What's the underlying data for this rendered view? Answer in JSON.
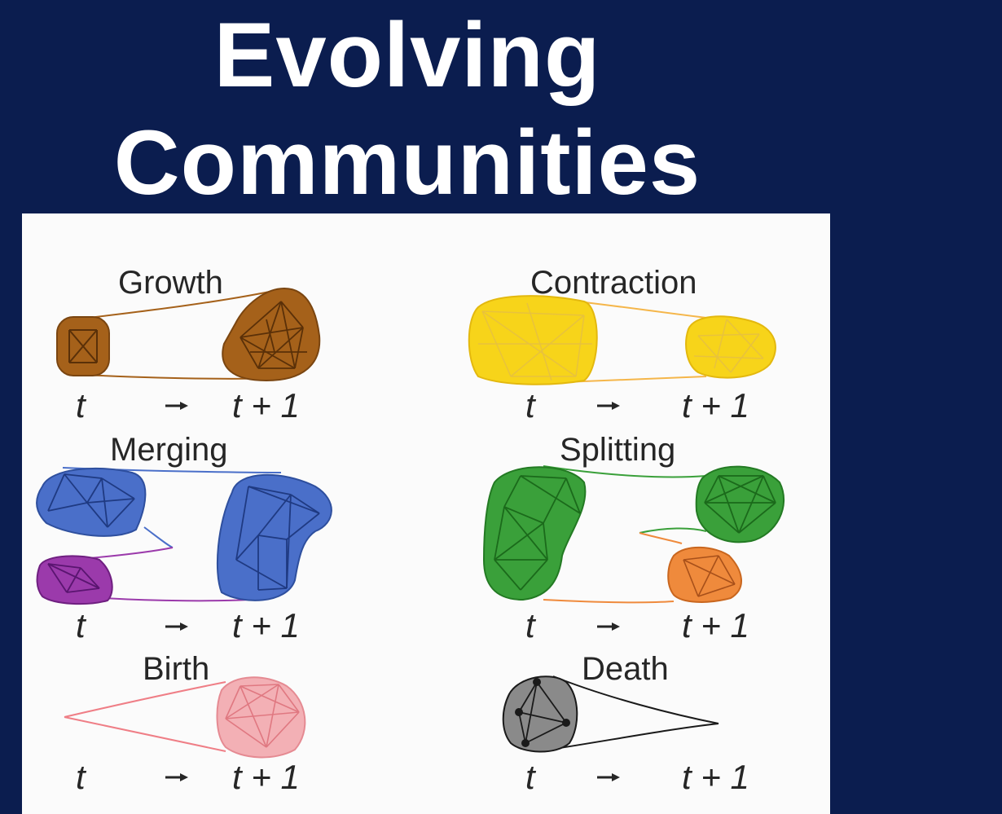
{
  "slide": {
    "title_line1": "Evolving",
    "title_line2": "Communities"
  },
  "panels": [
    {
      "id": "growth",
      "label": "Growth",
      "color": "#a5611a",
      "from": "t",
      "to": "t + 1"
    },
    {
      "id": "contraction",
      "label": "Contraction",
      "color": "#f7d41a",
      "from": "t",
      "to": "t + 1"
    },
    {
      "id": "merging",
      "label": "Merging",
      "color": "#4a6fc9",
      "color2": "#9b3aab",
      "from": "t",
      "to": "t + 1"
    },
    {
      "id": "splitting",
      "label": "Splitting",
      "color": "#3aa03a",
      "color2": "#ef8a3c",
      "from": "t",
      "to": "t + 1"
    },
    {
      "id": "birth",
      "label": "Birth",
      "color": "#ee9aa0",
      "from": "t",
      "to": "t + 1"
    },
    {
      "id": "death",
      "label": "Death",
      "color": "#8a8a8a",
      "from": "t",
      "to": "t + 1"
    }
  ]
}
